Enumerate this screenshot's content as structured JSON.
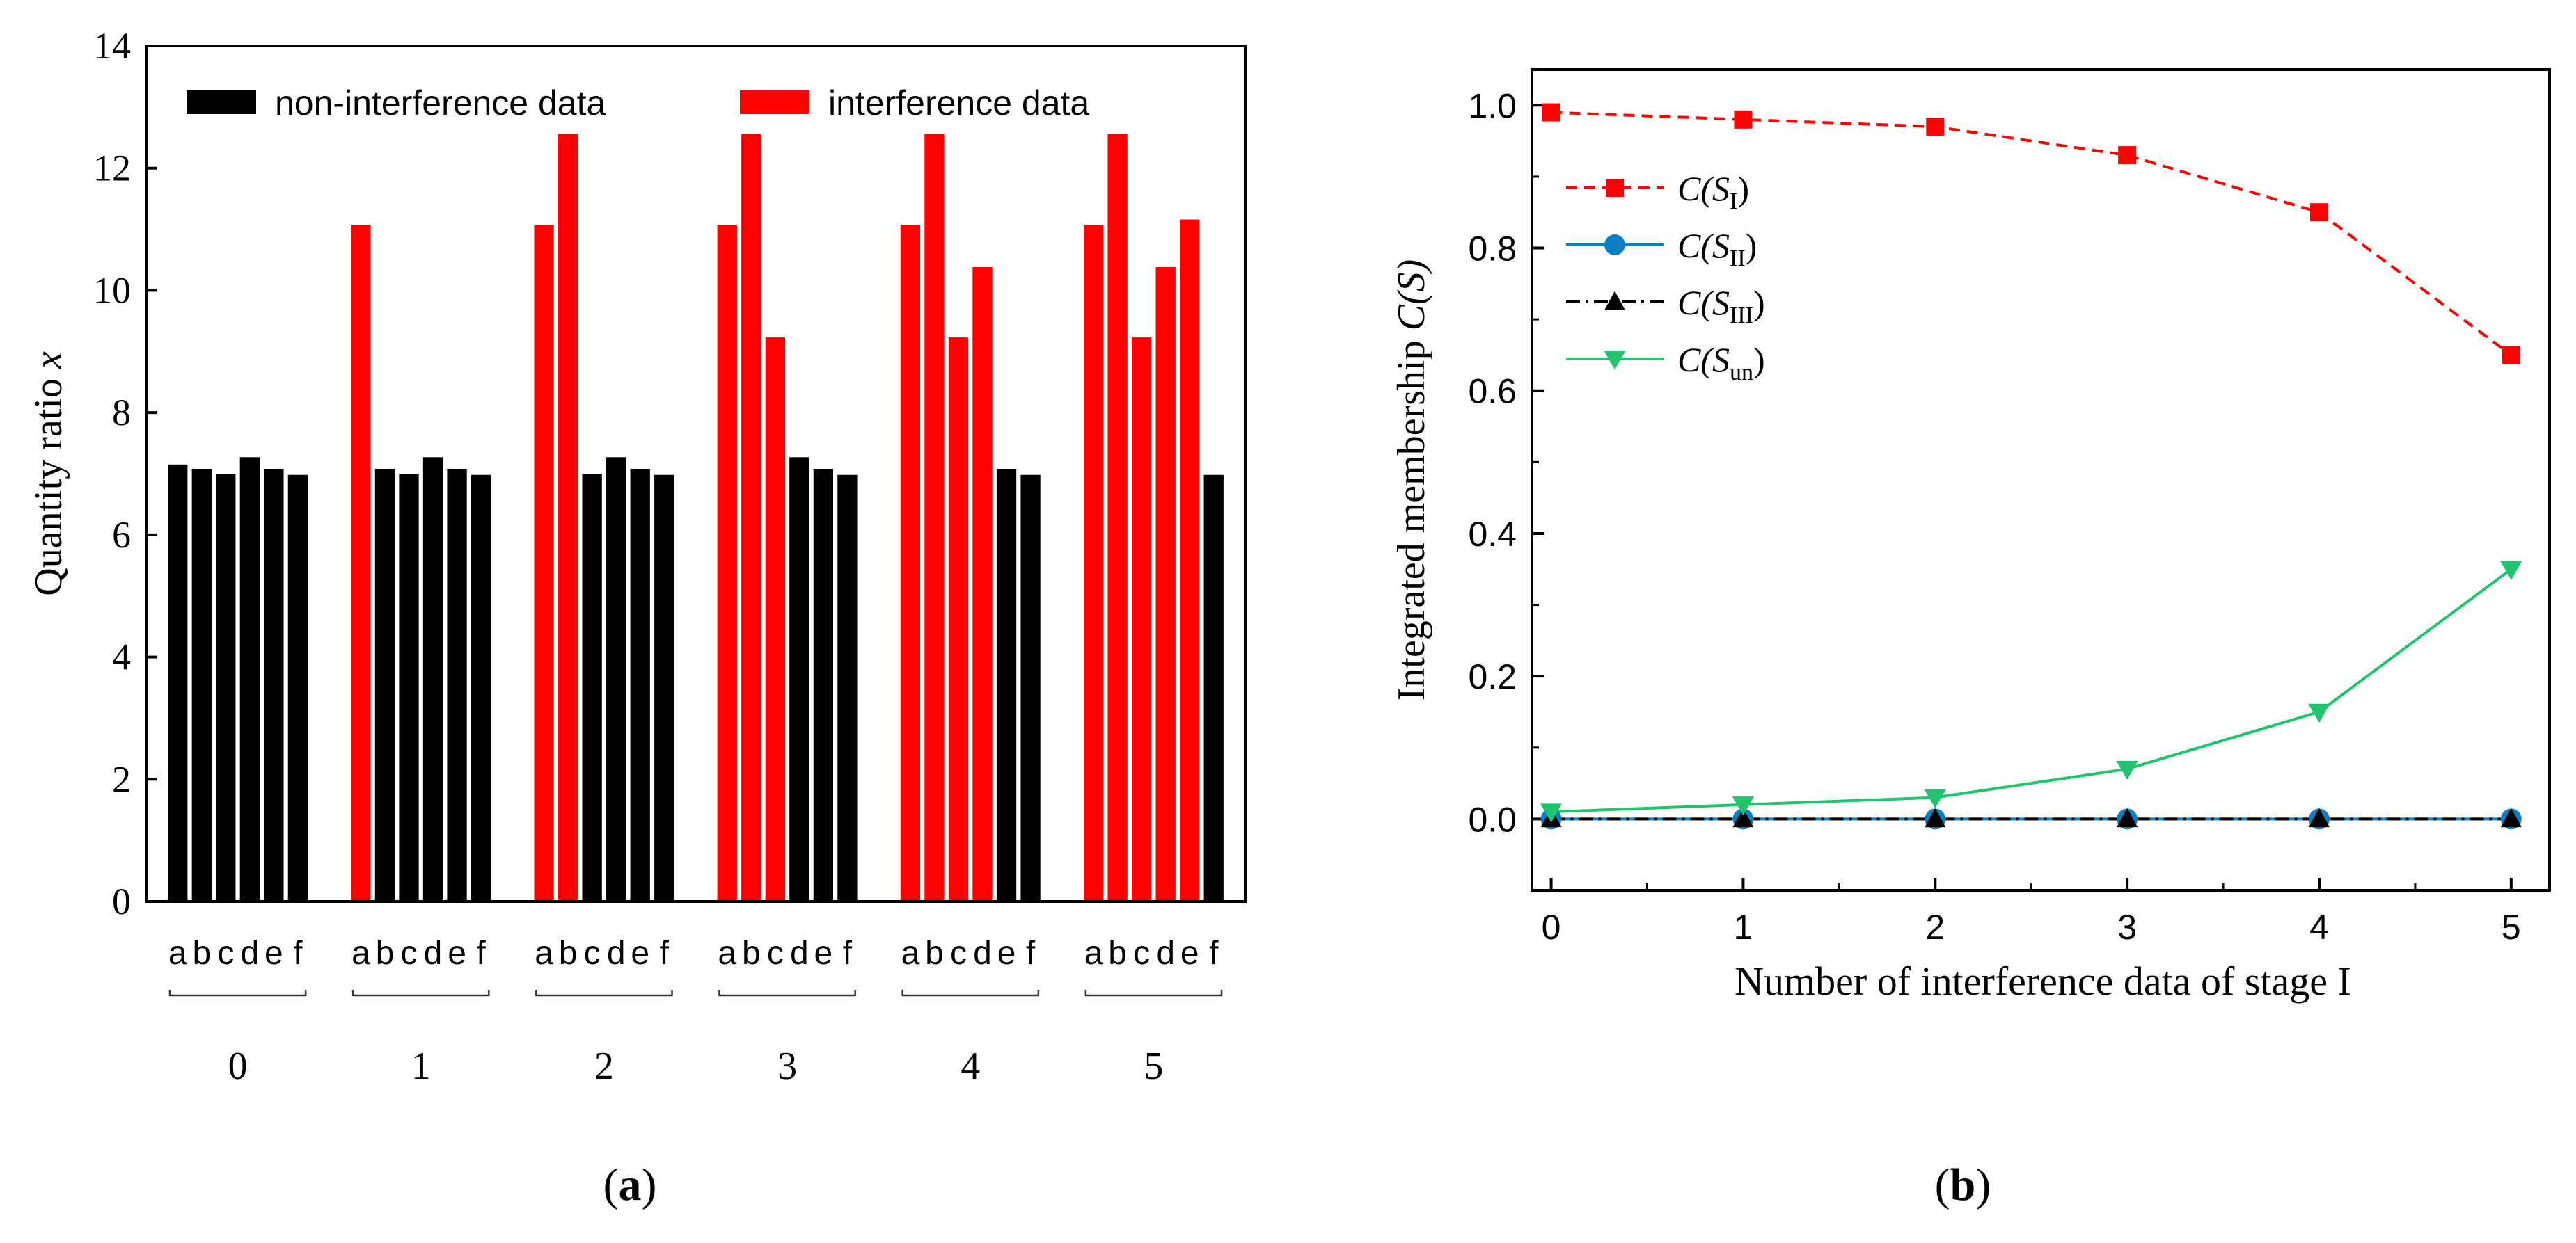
{
  "chart_data": [
    {
      "panel": "a",
      "type": "bar",
      "panel_label": "a",
      "ylabel": "Quantity ratio ",
      "ylabel_var": "x",
      "ylim": [
        0,
        14
      ],
      "yticks": [
        "0",
        "2",
        "4",
        "6",
        "8",
        "10",
        "12",
        "14"
      ],
      "legend": {
        "position": "top",
        "entries": [
          {
            "label": "non-interference data",
            "color": "#000000"
          },
          {
            "label": "interference data",
            "color": "#ff0000"
          }
        ]
      },
      "bar_labels": [
        "a",
        "b",
        "c",
        "d",
        "e",
        "f"
      ],
      "groups": [
        {
          "label": "0",
          "values": [
            7.15,
            7.08,
            7.0,
            7.27,
            7.08,
            6.98
          ],
          "interference": [
            false,
            false,
            false,
            false,
            false,
            false
          ]
        },
        {
          "label": "1",
          "values": [
            11.07,
            7.08,
            7.0,
            7.27,
            7.08,
            6.98
          ],
          "interference": [
            true,
            false,
            false,
            false,
            false,
            false
          ]
        },
        {
          "label": "2",
          "values": [
            11.07,
            12.56,
            7.0,
            7.27,
            7.08,
            6.98
          ],
          "interference": [
            true,
            true,
            false,
            false,
            false,
            false
          ]
        },
        {
          "label": "3",
          "values": [
            11.07,
            12.56,
            9.23,
            7.27,
            7.08,
            6.98
          ],
          "interference": [
            true,
            true,
            true,
            false,
            false,
            false
          ]
        },
        {
          "label": "4",
          "values": [
            11.07,
            12.56,
            9.23,
            10.38,
            7.08,
            6.98
          ],
          "interference": [
            true,
            true,
            true,
            true,
            false,
            false
          ]
        },
        {
          "label": "5",
          "values": [
            11.07,
            12.56,
            9.23,
            10.38,
            11.16,
            6.98
          ],
          "interference": [
            true,
            true,
            true,
            true,
            true,
            false
          ]
        }
      ]
    },
    {
      "panel": "b",
      "type": "line",
      "panel_label": "b",
      "xlabel": "Number of interference data of stage I",
      "ylabel": "Integrated membership ",
      "ylabel_func": "C(S)",
      "x": [
        0,
        1,
        2,
        3,
        4,
        5
      ],
      "xlim": [
        -0.1,
        5.2
      ],
      "ylim": [
        -0.1,
        1.05
      ],
      "xticks": [
        "0",
        "1",
        "2",
        "3",
        "4",
        "5"
      ],
      "yticks": [
        "0.0",
        "0.2",
        "0.4",
        "0.6",
        "0.8",
        "1.0"
      ],
      "ytick_values": [
        0.0,
        0.2,
        0.4,
        0.6,
        0.8,
        1.0
      ],
      "legend_position": "top-left",
      "series": [
        {
          "name": "C(S_I)",
          "label_pre": "C(",
          "label_var": "S",
          "label_sub": "I",
          "label_post": ")",
          "color": "#ff0000",
          "dash": "dashed",
          "marker": "square",
          "values": [
            0.99,
            0.98,
            0.97,
            0.93,
            0.85,
            0.65
          ]
        },
        {
          "name": "C(S_II)",
          "label_pre": "C(",
          "label_var": "S",
          "label_sub": "II",
          "label_post": ")",
          "color": "#0a7fc4",
          "dash": "solid",
          "marker": "circle",
          "values": [
            0.0,
            0.0,
            0.0,
            0.0,
            0.0,
            0.0
          ]
        },
        {
          "name": "C(S_III)",
          "label_pre": "C(",
          "label_var": "S",
          "label_sub": "III",
          "label_post": ")",
          "color": "#000000",
          "dash": "dashdot",
          "marker": "triangle-up",
          "values": [
            0.0,
            0.0,
            0.0,
            0.0,
            0.0,
            0.0
          ]
        },
        {
          "name": "C(S_un)",
          "label_pre": "C(",
          "label_var": "S",
          "label_sub": "un",
          "label_post": ")",
          "color": "#1fc46c",
          "dash": "solid",
          "marker": "triangle-down",
          "values": [
            0.01,
            0.02,
            0.03,
            0.07,
            0.15,
            0.35
          ]
        }
      ]
    }
  ]
}
